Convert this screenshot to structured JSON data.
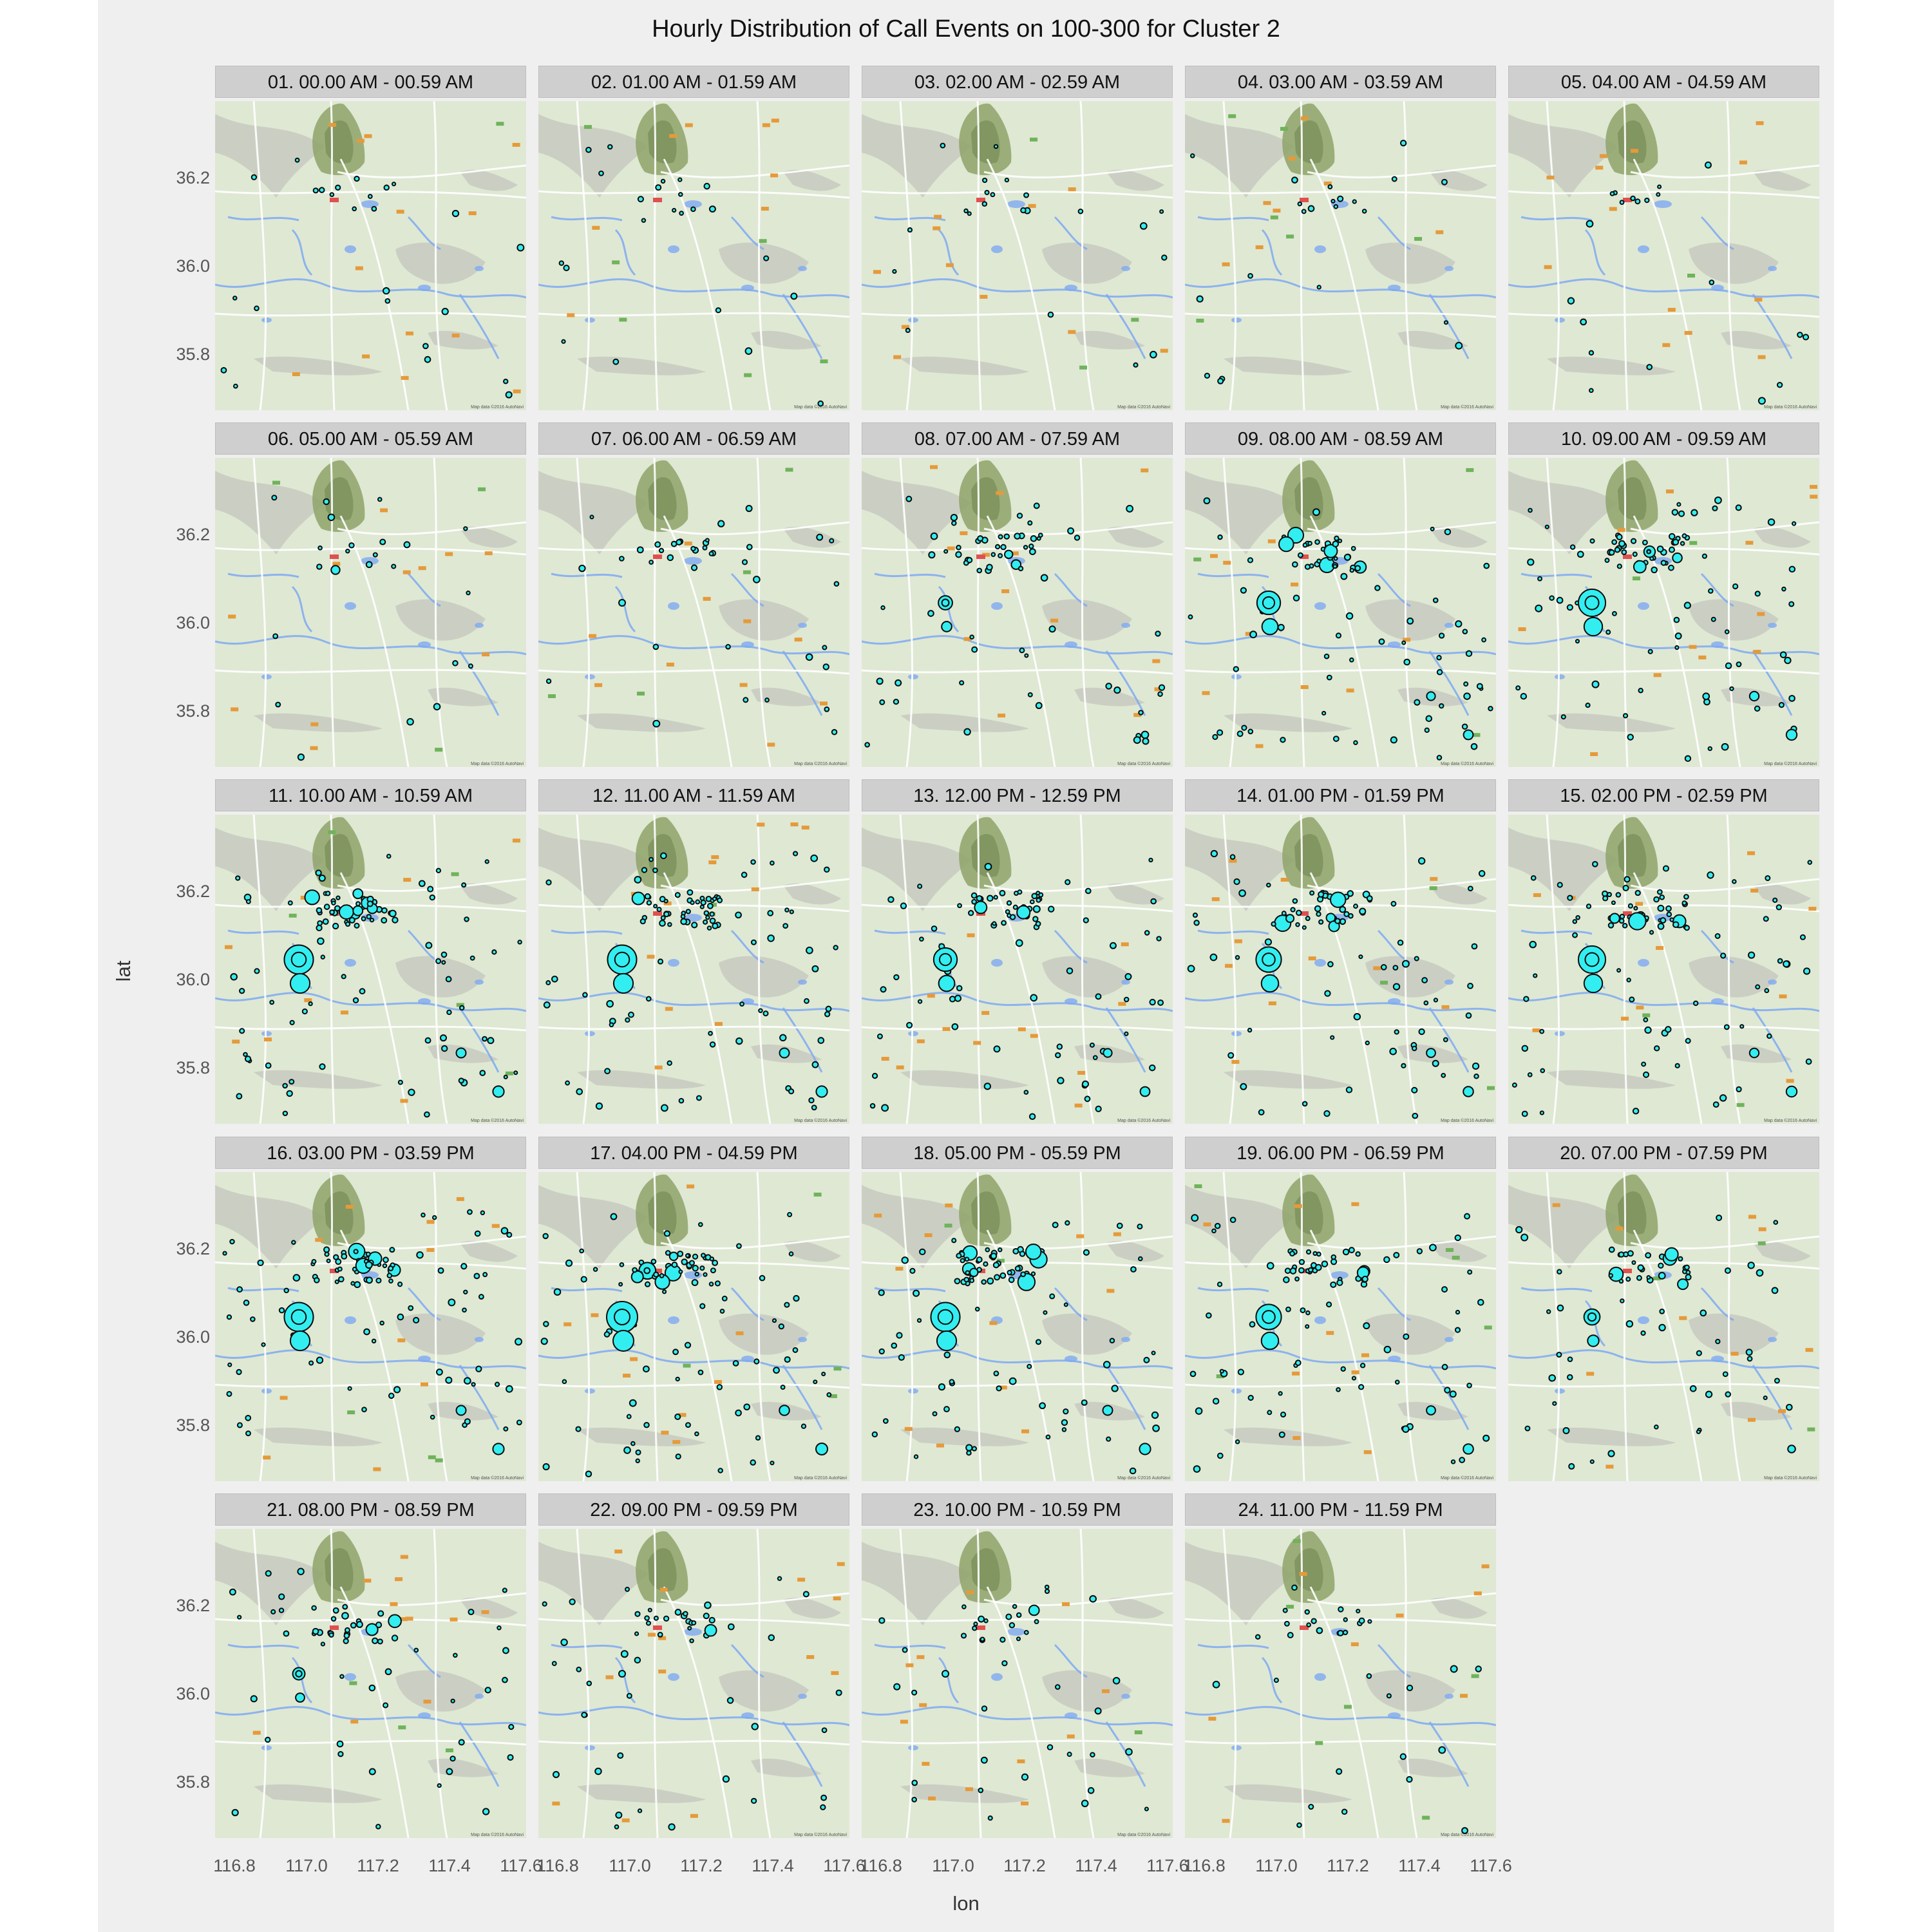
{
  "title": "Hourly Distribution of Call Events on 100-300 for Cluster 2",
  "x_axis_title": "lon",
  "y_axis_title": "lat",
  "x_ticks": [
    "116.8",
    "117.0",
    "117.2",
    "117.4",
    "117.6"
  ],
  "y_ticks": [
    "36.2",
    "36.0",
    "35.8"
  ],
  "map_attribution": "Map data ©2016 AutoNavi",
  "marker_color": "#33eef0",
  "marker_outline": "#0a0a0a",
  "basemap": {
    "land": "#dfe8d3",
    "water": "#7ea9f2",
    "mountain": "#8fa36a",
    "road": "#ffffff"
  },
  "panels": [
    {
      "label": "01. 00.00 AM - 00.59 AM",
      "level": 0.12
    },
    {
      "label": "02. 01.00 AM - 01.59 AM",
      "level": 0.1
    },
    {
      "label": "03. 02.00 AM - 02.59 AM",
      "level": 0.08
    },
    {
      "label": "04. 03.00 AM - 03.59 AM",
      "level": 0.08
    },
    {
      "label": "05. 04.00 AM - 04.59 AM",
      "level": 0.06
    },
    {
      "label": "06. 05.00 AM - 05.59 AM",
      "level": 0.1
    },
    {
      "label": "07. 06.00 AM - 06.59 AM",
      "level": 0.25
    },
    {
      "label": "08. 07.00 AM - 07.59 AM",
      "level": 0.55
    },
    {
      "label": "09. 08.00 AM - 08.59 AM",
      "level": 0.8
    },
    {
      "label": "10. 09.00 AM - 09.59 AM",
      "level": 0.9
    },
    {
      "label": "11. 10.00 AM - 10.59 AM",
      "level": 0.95
    },
    {
      "label": "12. 11.00 AM - 11.59 AM",
      "level": 0.95
    },
    {
      "label": "13. 12.00 PM - 12.59 PM",
      "level": 0.8
    },
    {
      "label": "14. 01.00 PM - 01.59 PM",
      "level": 0.85
    },
    {
      "label": "15. 02.00 PM - 02.59 PM",
      "level": 0.9
    },
    {
      "label": "16. 03.00 PM - 03.59 PM",
      "level": 0.95
    },
    {
      "label": "17. 04.00 PM - 04.59 PM",
      "level": 1.0
    },
    {
      "label": "18. 05.00 PM - 05.59 PM",
      "level": 0.95
    },
    {
      "label": "19. 06.00 PM - 06.59 PM",
      "level": 0.85
    },
    {
      "label": "20. 07.00 PM - 07.59 PM",
      "level": 0.6
    },
    {
      "label": "21. 08.00 PM - 08.59 PM",
      "level": 0.5
    },
    {
      "label": "22. 09.00 PM - 09.59 PM",
      "level": 0.4
    },
    {
      "label": "23. 10.00 PM - 10.59 PM",
      "level": 0.3
    },
    {
      "label": "24. 11.00 PM - 11.59 PM",
      "level": 0.2
    }
  ]
}
